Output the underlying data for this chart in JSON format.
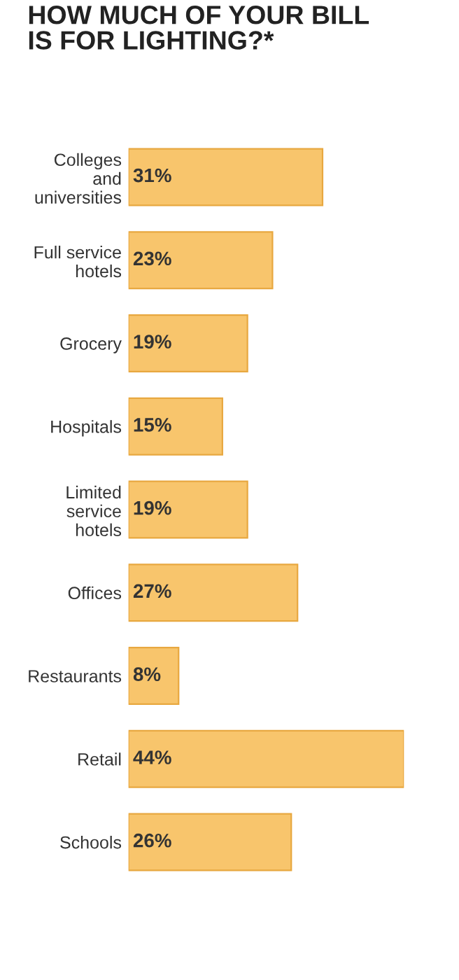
{
  "chart_data": {
    "type": "bar",
    "orientation": "horizontal",
    "title": "HOW MUCH OF YOUR BILL\nIS FOR LIGHTING?*",
    "categories": [
      "Colleges\nand\nuniversities",
      "Full service\nhotels",
      "Grocery",
      "Hospitals",
      "Limited\nservice\nhotels",
      "Offices",
      "Restaurants",
      "Retail",
      "Schools"
    ],
    "values": [
      31,
      23,
      19,
      15,
      19,
      27,
      8,
      44,
      26
    ],
    "value_labels": [
      "31%",
      "23%",
      "19%",
      "15%",
      "19%",
      "27%",
      "8%",
      "44%",
      "26%"
    ],
    "color": "#f8c56c",
    "tick_labels": "y",
    "grid": false
  }
}
